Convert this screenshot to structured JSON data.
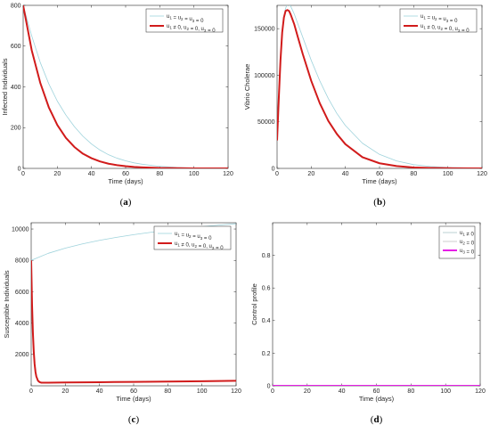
{
  "colors": {
    "uncontrolled": "#9fd3dc",
    "controlled": "#d11b1b",
    "control_u1": "#aac4c8",
    "control_u2": "#bfbfbf",
    "control_u3": "#e61ee6",
    "axis": "#262626"
  },
  "chart_data": [
    {
      "type": "line",
      "panel_label": "a",
      "xlabel": "Time (days)",
      "ylabel": "Infected Individuals",
      "xlim": [
        0,
        120
      ],
      "ylim": [
        0,
        800
      ],
      "xticks": [
        0,
        20,
        40,
        60,
        80,
        100,
        120
      ],
      "yticks": [
        0,
        200,
        400,
        600,
        800
      ],
      "legend": "top-right",
      "series": [
        {
          "name": "u1 = u2 = u3 = 0",
          "style": "uncontrolled",
          "x": [
            0,
            5,
            10,
            15,
            20,
            25,
            30,
            35,
            40,
            45,
            50,
            55,
            60,
            65,
            70,
            80,
            90,
            100,
            110,
            120
          ],
          "y": [
            800,
            650,
            520,
            415,
            330,
            262,
            205,
            158,
            120,
            90,
            67,
            50,
            37,
            27,
            20,
            10,
            5,
            2,
            1,
            0
          ]
        },
        {
          "name": "u1 ≠ 0, u2 = 0, u3 = 0",
          "style": "controlled",
          "x": [
            0,
            5,
            10,
            15,
            20,
            25,
            30,
            35,
            40,
            45,
            50,
            55,
            60,
            65,
            70,
            80,
            90,
            100,
            110,
            120
          ],
          "y": [
            800,
            580,
            420,
            300,
            213,
            150,
            105,
            72,
            50,
            34,
            23,
            16,
            11,
            7,
            5,
            2,
            1,
            0,
            0,
            0
          ]
        }
      ]
    },
    {
      "type": "line",
      "panel_label": "b",
      "xlabel": "Time (days)",
      "ylabel": "Vibrio Cholerae",
      "xlim": [
        0,
        120
      ],
      "ylim": [
        0,
        175000
      ],
      "xticks": [
        0,
        20,
        40,
        60,
        80,
        100,
        120
      ],
      "yticks": [
        0,
        50000,
        100000,
        150000
      ],
      "legend": "top-right",
      "series": [
        {
          "name": "u1 = u2 = u3 = 0",
          "style": "uncontrolled",
          "x": [
            0,
            1,
            2,
            3,
            4,
            5,
            6,
            7,
            8,
            10,
            12,
            15,
            20,
            25,
            30,
            35,
            40,
            50,
            60,
            70,
            80,
            90,
            100,
            120
          ],
          "y": [
            30000,
            75000,
            115000,
            145000,
            163000,
            172000,
            176000,
            176000,
            174000,
            166000,
            156000,
            141000,
            116000,
            94000,
            75000,
            59000,
            46000,
            27000,
            15000,
            8000,
            4000,
            2000,
            1000,
            200
          ]
        },
        {
          "name": "u1 ≠ 0, u2 = 0, u3 = 0",
          "style": "controlled",
          "x": [
            0,
            1,
            2,
            3,
            4,
            5,
            6,
            7,
            8,
            10,
            12,
            15,
            20,
            25,
            30,
            35,
            40,
            50,
            60,
            70,
            80,
            90,
            100,
            120
          ],
          "y": [
            30000,
            75000,
            116000,
            146000,
            162000,
            169000,
            170000,
            169000,
            165000,
            155000,
            142000,
            123000,
            94000,
            70000,
            51000,
            37000,
            26000,
            12000,
            5500,
            2500,
            1000,
            500,
            200,
            0
          ]
        }
      ]
    },
    {
      "type": "line",
      "panel_label": "c",
      "xlabel": "Time (days)",
      "ylabel": "Susceptible Individuals",
      "xlim": [
        0,
        120
      ],
      "ylim": [
        0,
        10400
      ],
      "xticks": [
        0,
        20,
        40,
        60,
        80,
        100,
        120
      ],
      "yticks": [
        2000,
        4000,
        6000,
        8000,
        10000
      ],
      "legend": "top-right",
      "series": [
        {
          "name": "u1 = u2 = u3 = 0",
          "style": "uncontrolled",
          "x": [
            0,
            10,
            20,
            30,
            40,
            50,
            60,
            70,
            80,
            90,
            100,
            110,
            120
          ],
          "y": [
            8000,
            8450,
            8780,
            9050,
            9280,
            9470,
            9640,
            9790,
            9920,
            10040,
            10150,
            10250,
            10340
          ]
        },
        {
          "name": "u1 ≠ 0, u2 = 0, u3 = 0",
          "style": "controlled",
          "x": [
            0,
            0.5,
            1,
            1.5,
            2,
            2.5,
            3,
            4,
            5,
            6,
            8,
            10,
            20,
            40,
            60,
            80,
            100,
            120
          ],
          "y": [
            8000,
            5200,
            3400,
            2200,
            1400,
            900,
            600,
            320,
            230,
            200,
            200,
            200,
            210,
            230,
            250,
            270,
            290,
            320
          ]
        }
      ]
    },
    {
      "type": "line",
      "panel_label": "d",
      "xlabel": "Time (days)",
      "ylabel": "Control profile",
      "xlim": [
        0,
        120
      ],
      "ylim": [
        0,
        1
      ],
      "xticks": [
        0,
        20,
        40,
        60,
        80,
        100,
        120
      ],
      "yticks": [
        0,
        0.2,
        0.4,
        0.6,
        0.8
      ],
      "legend": "top-right",
      "series": [
        {
          "name": "u1 ≠ 0",
          "style": "control_u1",
          "x": [
            0,
            120
          ],
          "y": [
            0,
            0
          ]
        },
        {
          "name": "u2 = 0",
          "style": "control_u2",
          "x": [
            0,
            120
          ],
          "y": [
            0,
            0
          ]
        },
        {
          "name": "u3 = 0",
          "style": "control_u3",
          "x": [
            0,
            120
          ],
          "y": [
            0,
            0
          ]
        }
      ]
    }
  ]
}
